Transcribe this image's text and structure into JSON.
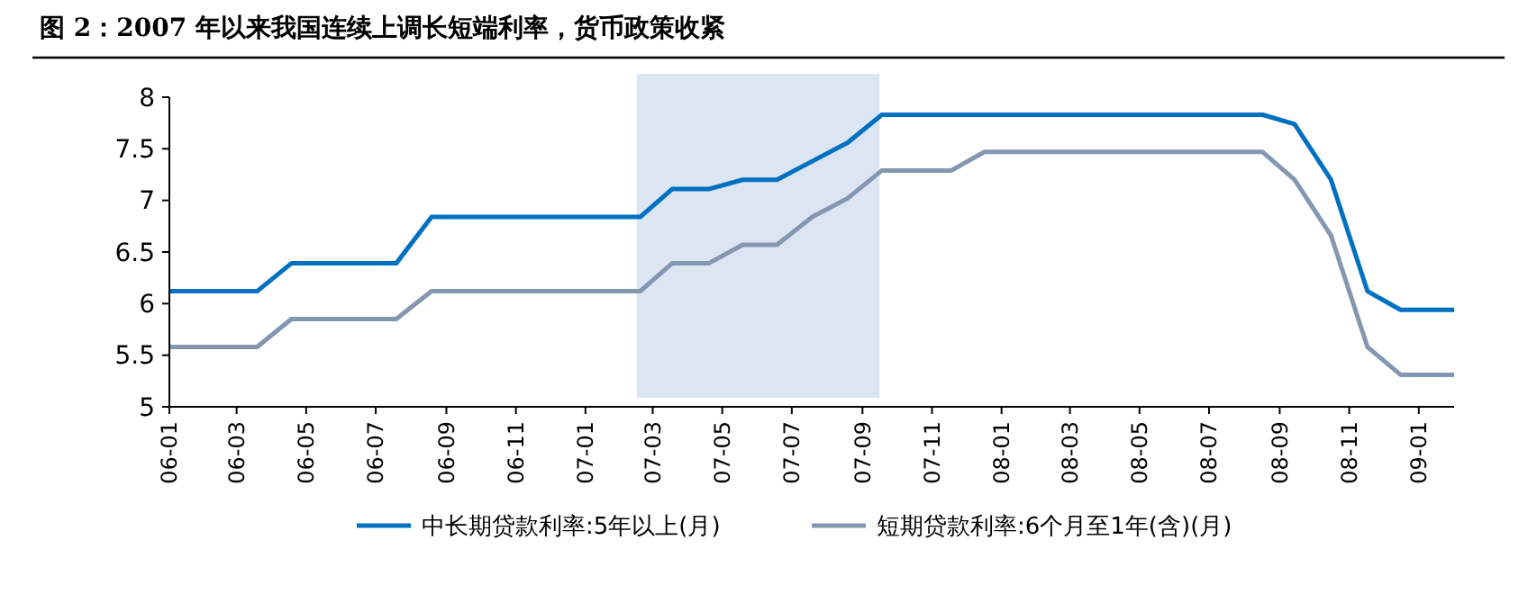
{
  "chart_data": {
    "type": "line",
    "title": "图 2：2007 年以来我国连续上调长短端利率，货币政策收紧",
    "series": [
      {
        "name": "中长期贷款利率:5年以上(月)",
        "color": "#0070c0",
        "x": [
          "2006-01-01",
          "2006-03-19",
          "2006-04-18",
          "2006-07-19",
          "2006-08-19",
          "2007-02-18",
          "2007-03-18",
          "2007-04-19",
          "2007-05-19",
          "2007-06-18",
          "2007-07-19",
          "2007-08-19",
          "2007-09-18",
          "2008-08-17",
          "2008-09-14",
          "2008-10-16",
          "2008-11-17",
          "2008-12-16",
          "2009-02-01"
        ],
        "values": [
          6.12,
          6.12,
          6.39,
          6.39,
          6.84,
          6.84,
          7.11,
          7.11,
          7.2,
          7.2,
          7.38,
          7.56,
          7.83,
          7.83,
          7.74,
          7.2,
          6.12,
          5.94,
          5.94
        ]
      },
      {
        "name": "短期贷款利率:6个月至1年(含)(月)",
        "color": "#8497b0",
        "x": [
          "2006-01-01",
          "2006-03-19",
          "2006-04-18",
          "2006-07-19",
          "2006-08-19",
          "2007-02-18",
          "2007-03-18",
          "2007-04-19",
          "2007-05-19",
          "2007-06-18",
          "2007-07-19",
          "2007-08-19",
          "2007-09-18",
          "2007-11-18",
          "2007-12-17",
          "2008-08-17",
          "2008-09-14",
          "2008-10-16",
          "2008-11-17",
          "2008-12-16",
          "2009-02-01"
        ],
        "values": [
          5.58,
          5.58,
          5.85,
          5.85,
          6.12,
          6.12,
          6.39,
          6.39,
          6.57,
          6.57,
          6.84,
          7.02,
          7.29,
          7.29,
          7.47,
          7.47,
          7.2,
          6.66,
          5.58,
          5.31,
          5.31
        ]
      }
    ],
    "xlim": [
      "2006-01-01",
      "2009-02-01"
    ],
    "xticks": [
      {
        "value": "2006-01-01",
        "label": "06-01"
      },
      {
        "value": "2006-03-01",
        "label": "06-03"
      },
      {
        "value": "2006-05-01",
        "label": "06-05"
      },
      {
        "value": "2006-07-01",
        "label": "06-07"
      },
      {
        "value": "2006-09-01",
        "label": "06-09"
      },
      {
        "value": "2006-11-01",
        "label": "06-11"
      },
      {
        "value": "2007-01-01",
        "label": "07-01"
      },
      {
        "value": "2007-03-01",
        "label": "07-03"
      },
      {
        "value": "2007-05-01",
        "label": "07-05"
      },
      {
        "value": "2007-07-01",
        "label": "07-07"
      },
      {
        "value": "2007-09-01",
        "label": "07-09"
      },
      {
        "value": "2007-11-01",
        "label": "07-11"
      },
      {
        "value": "2008-01-01",
        "label": "08-01"
      },
      {
        "value": "2008-03-01",
        "label": "08-03"
      },
      {
        "value": "2008-05-01",
        "label": "08-05"
      },
      {
        "value": "2008-07-01",
        "label": "08-07"
      },
      {
        "value": "2008-09-01",
        "label": "08-09"
      },
      {
        "value": "2008-11-01",
        "label": "08-11"
      },
      {
        "value": "2009-01-01",
        "label": "09-01"
      }
    ],
    "ylim": [
      5,
      8
    ],
    "yticks": [
      5,
      5.5,
      6,
      6.5,
      7,
      7.5,
      8
    ],
    "bands": [
      {
        "axis": "x",
        "from": "2007-02-15",
        "to": "2007-09-16",
        "color": "#dce6f2"
      }
    ],
    "legend": "bottom",
    "line_style": "solid"
  }
}
